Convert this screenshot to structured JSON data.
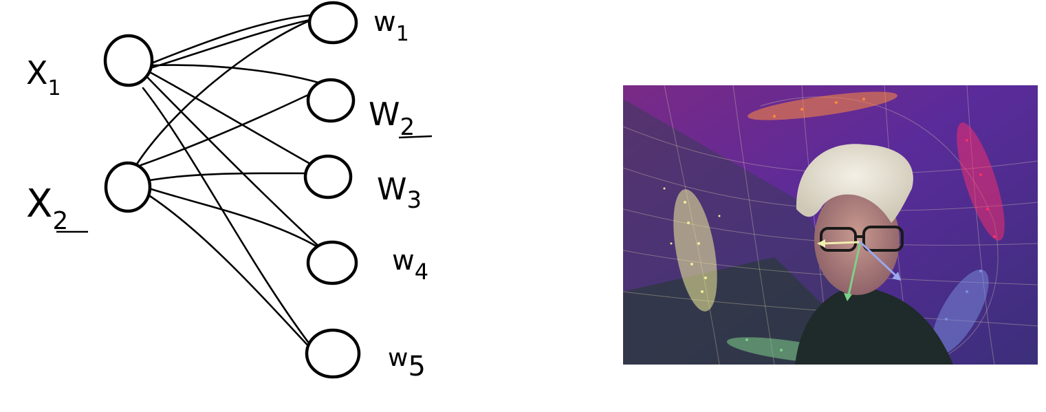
{
  "inputs": [
    {
      "id": "x1",
      "label": "X",
      "sub": "1"
    },
    {
      "id": "x2",
      "label": "X",
      "sub": "2"
    }
  ],
  "outputs": [
    {
      "id": "w1",
      "label": "w",
      "sub": "1"
    },
    {
      "id": "w2",
      "label": "W",
      "sub": "2"
    },
    {
      "id": "w3",
      "label": "W",
      "sub": "3"
    },
    {
      "id": "w4",
      "label": "w",
      "sub": "4"
    },
    {
      "id": "w5",
      "label": "w",
      "sub": "5"
    }
  ],
  "colors": {
    "ink": "#000000",
    "cluster_yellow": "#f3ee9a",
    "cluster_orange": "#ff8a3d",
    "cluster_red": "#ff2d6a",
    "cluster_green": "#7fd08a",
    "cluster_blue": "#7c8fe0",
    "background_purple": "#6a2a8e"
  }
}
